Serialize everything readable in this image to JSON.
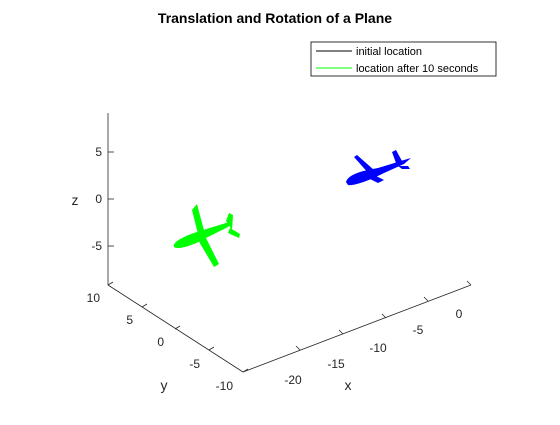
{
  "chart_data": {
    "type": "scatter",
    "title": "Translation and Rotation of a Plane",
    "xlabel": "x",
    "ylabel": "y",
    "zlabel": "z",
    "view": "3d-perspective",
    "x_ticks": [
      "-20",
      "-15",
      "-10",
      "-5",
      "0"
    ],
    "y_ticks": [
      "-10",
      "-5",
      "0",
      "5",
      "10"
    ],
    "z_ticks": [
      "5",
      "0",
      "-5"
    ],
    "grid": false,
    "legend_position": "top-right",
    "series": [
      {
        "name": "initial location",
        "color": "#000000",
        "marker_color": "#0000ff",
        "shape": "plane"
      },
      {
        "name": "location after 10 seconds",
        "color": "#00ff00",
        "marker_color": "#00ff00",
        "shape": "plane"
      }
    ]
  }
}
